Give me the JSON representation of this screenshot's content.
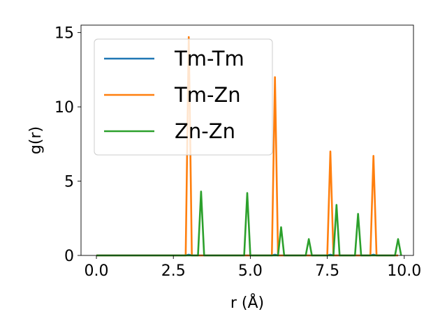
{
  "chart_data": {
    "type": "line",
    "title": "",
    "xlabel": "r (Å)",
    "ylabel": "g(r)",
    "xlim": [
      -0.5,
      10.3
    ],
    "ylim": [
      0,
      15.5
    ],
    "xticks": [
      0.0,
      2.5,
      5.0,
      7.5,
      10.0
    ],
    "xtick_labels": [
      "0.0",
      "2.5",
      "5.0",
      "7.5",
      "10.0"
    ],
    "yticks": [
      0,
      5,
      10,
      15
    ],
    "ytick_labels": [
      "0",
      "5",
      "10",
      "15"
    ],
    "grid": false,
    "legend": "upper-left",
    "series": [
      {
        "name": "Tm-Tm",
        "color": "#1f77b4",
        "x": [
          0.0,
          2.9,
          3.0,
          3.1,
          5.7,
          5.8,
          5.9,
          7.5,
          7.6,
          7.7,
          8.9,
          9.0,
          9.1,
          9.8
        ],
        "y": [
          0,
          0,
          0.05,
          0,
          0,
          0.05,
          0,
          0,
          0.05,
          0,
          0,
          0.05,
          0,
          0
        ]
      },
      {
        "name": "Tm-Zn",
        "color": "#ff7f0e",
        "x": [
          0.0,
          2.9,
          3.0,
          3.1,
          5.7,
          5.8,
          5.9,
          7.5,
          7.6,
          7.7,
          8.9,
          9.0,
          9.1,
          9.8
        ],
        "y": [
          0,
          0,
          14.7,
          0,
          0,
          12.0,
          0,
          0,
          7.0,
          0,
          0,
          6.7,
          0,
          0
        ]
      },
      {
        "name": "Zn-Zn",
        "color": "#2ca02c",
        "x": [
          0.0,
          3.3,
          3.4,
          3.5,
          4.8,
          4.9,
          5.0,
          5.9,
          6.0,
          6.1,
          6.8,
          6.9,
          7.0,
          7.7,
          7.8,
          7.9,
          8.4,
          8.5,
          8.6,
          9.7,
          9.8,
          9.9
        ],
        "y": [
          0,
          0,
          4.3,
          0,
          0,
          4.2,
          0,
          0,
          1.9,
          0,
          0,
          1.1,
          0,
          0,
          3.4,
          0,
          0,
          2.8,
          0,
          0,
          1.1,
          0
        ]
      }
    ]
  }
}
